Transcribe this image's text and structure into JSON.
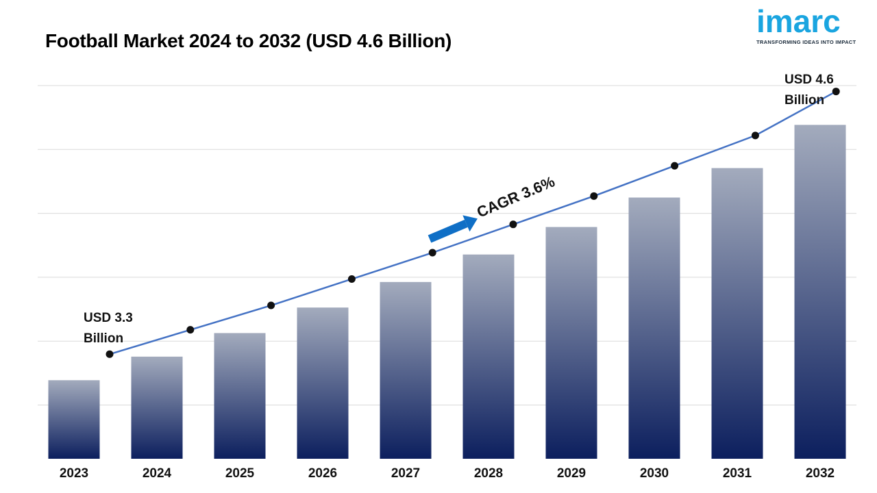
{
  "title": "Football Market 2024 to 2032 (USD 4.6 Billion)",
  "logo": {
    "word": "imarc",
    "tagline": "TRANSFORMING IDEAS INTO IMPACT",
    "color": "#1aa5e0"
  },
  "chart_data": {
    "type": "bar",
    "categories": [
      "2023",
      "2024",
      "2025",
      "2026",
      "2027",
      "2028",
      "2029",
      "2030",
      "2031",
      "2032"
    ],
    "values": [
      3.3,
      3.42,
      3.54,
      3.67,
      3.8,
      3.94,
      4.08,
      4.23,
      4.38,
      4.6
    ],
    "line_values": [
      3.3,
      3.42,
      3.54,
      3.67,
      3.8,
      3.94,
      4.08,
      4.23,
      4.38,
      4.6
    ],
    "ylim": [
      2.9,
      4.8
    ],
    "grid": true,
    "annotations": {
      "start_line1": "USD 3.3",
      "start_line2": "Billion",
      "end_line1": "USD 4.6",
      "end_line2": "Billion",
      "cagr": "CAGR 3.6%"
    },
    "colors": {
      "bar_top": "#a3abbd",
      "bar_bottom": "#0c1f5e",
      "line": "#4472c4",
      "arrow": "#0f6fc6",
      "grid": "#d9d9d9"
    }
  }
}
